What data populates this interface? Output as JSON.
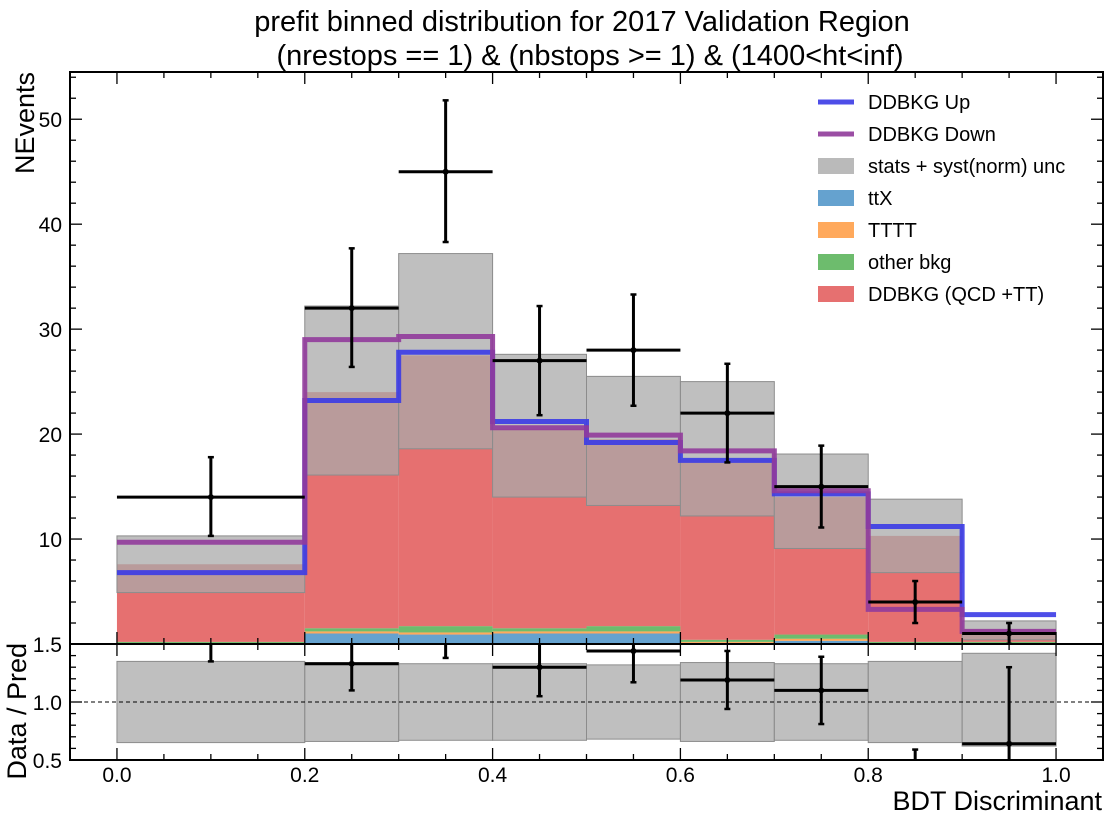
{
  "chart_data": {
    "type": "bar",
    "title": "prefit binned distribution for 2017 Validation Region",
    "subtitle": "(nrestops == 1) & (nbstops >= 1) & (1400<ht<inf)",
    "xlabel": "BDT Discriminant",
    "ylabel": "NEvents",
    "ratio_ylabel": "Data / Pred",
    "xlim": [
      -0.05,
      1.05
    ],
    "ylim": [
      0,
      54.5
    ],
    "ratio_ylim": [
      0.5,
      1.5
    ],
    "grid": false,
    "legend_position": "top-right",
    "bin_edges": [
      0.0,
      0.2,
      0.3,
      0.4,
      0.5,
      0.6,
      0.7,
      0.8,
      0.9,
      1.0
    ],
    "x_ticks": [
      "0.0",
      "0.2",
      "0.4",
      "0.6",
      "0.8",
      "1.0"
    ],
    "y_ticks": [
      "10",
      "20",
      "30",
      "40",
      "50"
    ],
    "ratio_y_ticks": [
      "0.5",
      "1.0",
      "1.5"
    ],
    "stack": [
      {
        "name": "ttX",
        "color": "#3f8bc3",
        "values": [
          0.05,
          1.0,
          0.9,
          1.0,
          1.0,
          0.1,
          0.3,
          0.05,
          0.05
        ]
      },
      {
        "name": "TTTT",
        "color": "#ff9333",
        "values": [
          0.05,
          0.2,
          0.2,
          0.2,
          0.2,
          0.1,
          0.2,
          0.05,
          0.05
        ]
      },
      {
        "name": "other bkg",
        "color": "#49ab48",
        "values": [
          0.1,
          0.3,
          0.6,
          0.3,
          0.5,
          0.2,
          0.4,
          0.1,
          0.1
        ]
      },
      {
        "name": "DDBKG (QCD +TT)",
        "color": "#e04c4c",
        "values": [
          7.4,
          22.5,
          25.8,
          19.0,
          17.8,
          17.2,
          13.1,
          10.1,
          1.2
        ]
      }
    ],
    "uncertainty": {
      "name": "stats + syst(norm) unc",
      "color": "#a9a9a9",
      "low": [
        4.9,
        16.1,
        18.6,
        14.0,
        13.2,
        12.2,
        9.1,
        6.8,
        0.4
      ],
      "high": [
        10.3,
        32.2,
        37.2,
        27.6,
        25.5,
        25.0,
        18.1,
        13.8,
        2.2
      ]
    },
    "variations": [
      {
        "name": "DDBKG Up",
        "color": "#3b3be6",
        "values": [
          6.8,
          23.2,
          27.8,
          21.2,
          19.2,
          17.5,
          14.3,
          11.2,
          2.8
        ]
      },
      {
        "name": "DDBKG Down",
        "color": "#913b9b",
        "values": [
          9.7,
          29.0,
          29.3,
          20.6,
          19.9,
          18.4,
          14.6,
          3.3,
          1.2
        ]
      }
    ],
    "data_points": [
      {
        "x": 0.1,
        "xerr": 0.1,
        "y": 14,
        "yerr_low": 3.7,
        "yerr_high": 3.8
      },
      {
        "x": 0.25,
        "xerr": 0.05,
        "y": 32,
        "yerr_low": 5.6,
        "yerr_high": 5.7
      },
      {
        "x": 0.35,
        "xerr": 0.05,
        "y": 45,
        "yerr_low": 6.7,
        "yerr_high": 6.8
      },
      {
        "x": 0.45,
        "xerr": 0.05,
        "y": 27,
        "yerr_low": 5.2,
        "yerr_high": 5.2
      },
      {
        "x": 0.55,
        "xerr": 0.05,
        "y": 28,
        "yerr_low": 5.3,
        "yerr_high": 5.3
      },
      {
        "x": 0.65,
        "xerr": 0.05,
        "y": 22,
        "yerr_low": 4.7,
        "yerr_high": 4.7
      },
      {
        "x": 0.75,
        "xerr": 0.05,
        "y": 15,
        "yerr_low": 3.9,
        "yerr_high": 3.9
      },
      {
        "x": 0.85,
        "xerr": 0.05,
        "y": 4,
        "yerr_low": 2.0,
        "yerr_high": 2.0
      },
      {
        "x": 0.95,
        "xerr": 0.05,
        "y": 1,
        "yerr_low": 1.0,
        "yerr_high": 1.0
      }
    ],
    "ratio": {
      "unc_low": [
        0.65,
        0.66,
        0.67,
        0.67,
        0.68,
        0.66,
        0.67,
        0.65,
        0.62
      ],
      "unc_high": [
        1.35,
        1.34,
        1.33,
        1.33,
        1.32,
        1.34,
        1.33,
        1.35,
        1.42
      ],
      "points": [
        {
          "x": 0.1,
          "xerr": 0.1,
          "y": 1.84,
          "yerr_low": 0.49,
          "yerr_high": 0.5
        },
        {
          "x": 0.25,
          "xerr": 0.05,
          "y": 1.33,
          "yerr_low": 0.23,
          "yerr_high": 0.24
        },
        {
          "x": 0.35,
          "xerr": 0.05,
          "y": 1.62,
          "yerr_low": 0.24,
          "yerr_high": 0.25
        },
        {
          "x": 0.45,
          "xerr": 0.05,
          "y": 1.3,
          "yerr_low": 0.25,
          "yerr_high": 0.25
        },
        {
          "x": 0.55,
          "xerr": 0.05,
          "y": 1.44,
          "yerr_low": 0.27,
          "yerr_high": 0.27
        },
        {
          "x": 0.65,
          "xerr": 0.05,
          "y": 1.19,
          "yerr_low": 0.25,
          "yerr_high": 0.25
        },
        {
          "x": 0.75,
          "xerr": 0.05,
          "y": 1.1,
          "yerr_low": 0.29,
          "yerr_high": 0.29
        },
        {
          "x": 0.85,
          "xerr": 0.05,
          "y": 0.39,
          "yerr_low": 0.2,
          "yerr_high": 0.2
        },
        {
          "x": 0.95,
          "xerr": 0.05,
          "y": 0.64,
          "yerr_low": 0.64,
          "yerr_high": 0.66
        }
      ]
    }
  }
}
